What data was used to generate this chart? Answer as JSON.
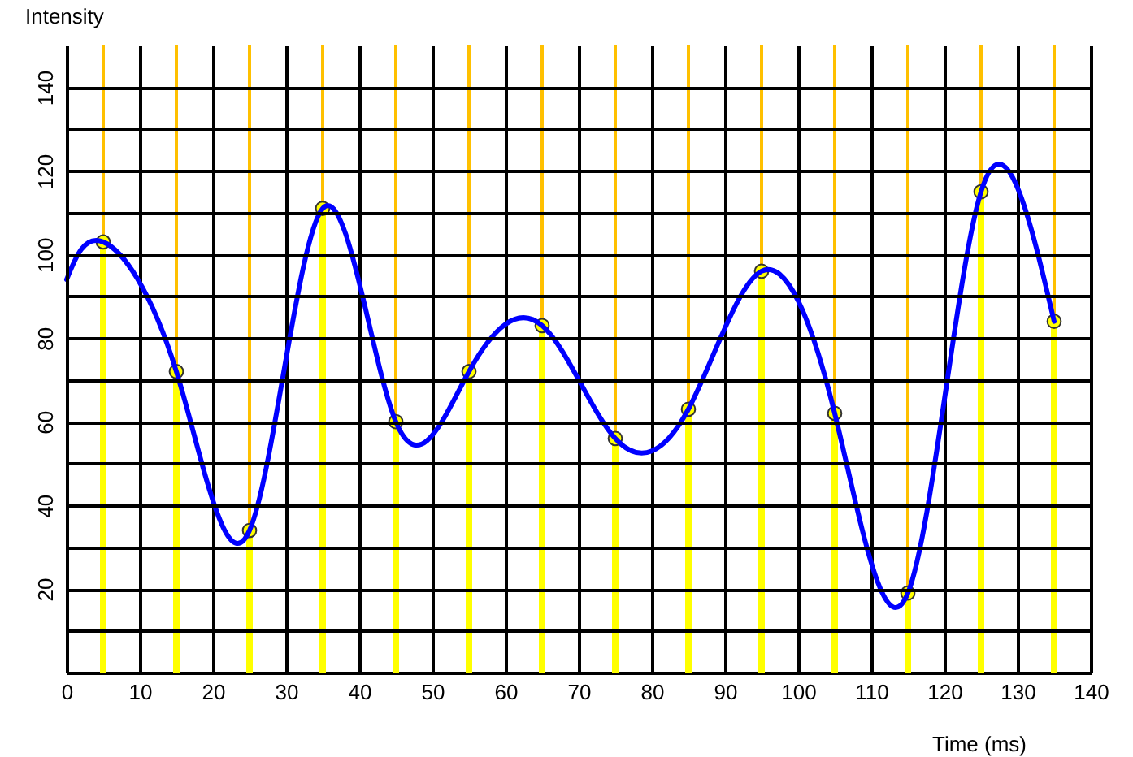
{
  "chart_data": {
    "type": "line",
    "xlabel": "Time (ms)",
    "ylabel": "Intensity",
    "xlim": [
      0,
      140
    ],
    "xticks": [
      0,
      10,
      20,
      30,
      40,
      50,
      60,
      70,
      80,
      90,
      100,
      110,
      120,
      130,
      140
    ],
    "ylim": [
      0,
      150
    ],
    "yticks": [
      {
        "value": 10,
        "label": null
      },
      20,
      {
        "value": 30,
        "label": null
      },
      40,
      {
        "value": 50,
        "label": null
      },
      60,
      {
        "value": 70,
        "label": null
      },
      80,
      {
        "value": 90,
        "label": null
      },
      100,
      {
        "value": 110,
        "label": null
      },
      120,
      {
        "value": 130,
        "label": null
      },
      140
    ],
    "grid": true,
    "ref_lines": [
      {
        "axis": "x",
        "value": 5,
        "color": "#ffc000"
      },
      {
        "axis": "x",
        "value": 15,
        "color": "#ffc000"
      },
      {
        "axis": "x",
        "value": 25,
        "color": "#ffc000"
      },
      {
        "axis": "x",
        "value": 35,
        "color": "#ffc000"
      },
      {
        "axis": "x",
        "value": 45,
        "color": "#ffc000"
      },
      {
        "axis": "x",
        "value": 55,
        "color": "#ffc000"
      },
      {
        "axis": "x",
        "value": 65,
        "color": "#ffc000"
      },
      {
        "axis": "x",
        "value": 75,
        "color": "#ffc000"
      },
      {
        "axis": "x",
        "value": 85,
        "color": "#ffc000"
      },
      {
        "axis": "x",
        "value": 95,
        "color": "#ffc000"
      },
      {
        "axis": "x",
        "value": 105,
        "color": "#ffc000"
      },
      {
        "axis": "x",
        "value": 115,
        "color": "#ffc000"
      },
      {
        "axis": "x",
        "value": 125,
        "color": "#ffc000"
      },
      {
        "axis": "x",
        "value": 135,
        "color": "#ffc000"
      }
    ],
    "series": [
      {
        "type": "lollipop",
        "color": "#ffff00",
        "marker": "circle",
        "x": [
          5,
          15,
          25,
          35,
          45,
          55,
          65,
          75,
          85,
          95,
          105,
          115,
          125,
          135
        ],
        "values": [
          103,
          72,
          34,
          111,
          60,
          72,
          83,
          56,
          63,
          96,
          62,
          19,
          115,
          84
        ]
      },
      {
        "color": "#0000ff",
        "x": [
          0,
          5,
          15,
          25,
          35,
          45,
          55,
          65,
          75,
          85,
          95,
          105,
          115,
          125,
          135
        ],
        "values": [
          94,
          103,
          72,
          34,
          111,
          60,
          72,
          83,
          56,
          63,
          96,
          62,
          19,
          115,
          84
        ]
      }
    ]
  }
}
